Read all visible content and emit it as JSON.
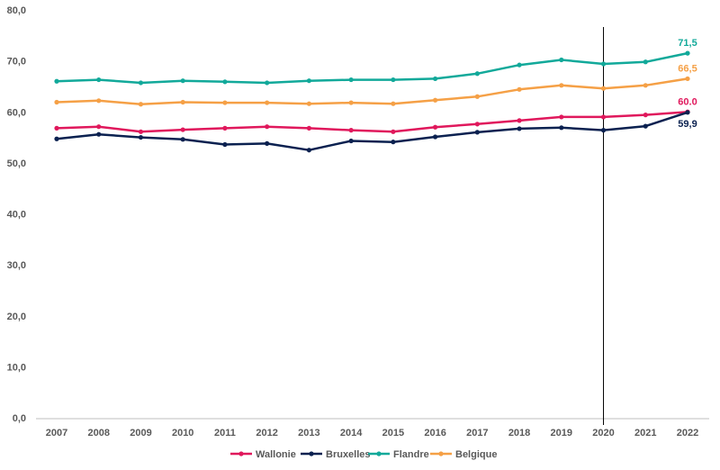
{
  "chart_data": {
    "type": "line",
    "categories": [
      "2007",
      "2008",
      "2009",
      "2010",
      "2011",
      "2012",
      "2013",
      "2014",
      "2015",
      "2016",
      "2017",
      "2018",
      "2019",
      "2020",
      "2021",
      "2022"
    ],
    "series": [
      {
        "name": "Wallonie",
        "color": "#e0185c",
        "values": [
          56.8,
          57.1,
          56.1,
          56.5,
          56.8,
          57.1,
          56.8,
          56.4,
          56.1,
          57.0,
          57.6,
          58.3,
          59.0,
          59.0,
          59.4,
          60.0
        ]
      },
      {
        "name": "Bruxelles",
        "color": "#0b2150",
        "values": [
          54.7,
          55.6,
          55.0,
          54.6,
          53.6,
          53.8,
          52.5,
          54.3,
          54.1,
          55.1,
          56.0,
          56.7,
          56.9,
          56.4,
          57.2,
          59.9
        ]
      },
      {
        "name": "Flandre",
        "color": "#12a99a",
        "values": [
          66.0,
          66.3,
          65.7,
          66.1,
          65.9,
          65.7,
          66.1,
          66.3,
          66.3,
          66.5,
          67.5,
          69.2,
          70.2,
          69.4,
          69.8,
          71.5
        ]
      },
      {
        "name": "Belgique",
        "color": "#f5a046",
        "values": [
          61.9,
          62.2,
          61.5,
          61.9,
          61.8,
          61.8,
          61.6,
          61.8,
          61.6,
          62.3,
          63.0,
          64.4,
          65.2,
          64.6,
          65.2,
          66.5
        ]
      }
    ],
    "data_labels": [
      {
        "series": "Flandre",
        "text": "71,5"
      },
      {
        "series": "Belgique",
        "text": "66,5"
      },
      {
        "series": "Wallonie",
        "text": "60.0"
      },
      {
        "series": "Bruxelles",
        "text": "59,9"
      }
    ],
    "y_ticks": [
      "0,0",
      "10,0",
      "20,0",
      "30,0",
      "40,0",
      "50,0",
      "60,0",
      "70,0",
      "80,0"
    ],
    "ylim": [
      0,
      80
    ],
    "grid": false,
    "marker_line_category": "2020",
    "legend_position": "bottom",
    "title": "",
    "xlabel": "",
    "ylabel": ""
  }
}
